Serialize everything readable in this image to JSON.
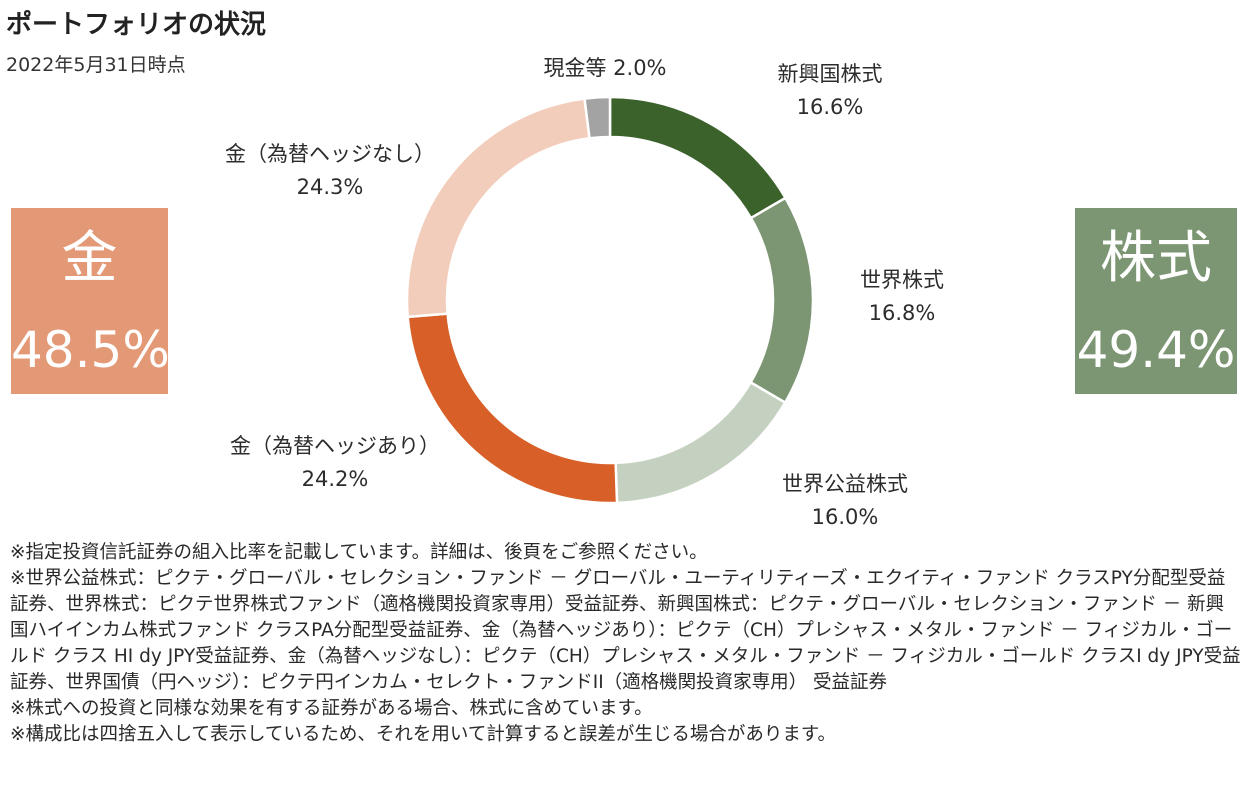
{
  "header": {
    "title": "ポートフォリオの状況",
    "as_of": "2022年5月31日時点"
  },
  "summary": {
    "gold": {
      "label": "金",
      "value": "48.5%",
      "color": "#e39876"
    },
    "stocks": {
      "label": "株式",
      "value": "49.4%",
      "color": "#7c9673"
    }
  },
  "chart_data": {
    "type": "pie",
    "donut": true,
    "title": "",
    "series": [
      {
        "name": "新興国株式",
        "value": 16.6,
        "label": "16.6%",
        "color": "#3b622b"
      },
      {
        "name": "世界株式",
        "value": 16.8,
        "label": "16.8%",
        "color": "#7c9673"
      },
      {
        "name": "世界公益株式",
        "value": 16.0,
        "label": "16.0%",
        "color": "#c5d1c0"
      },
      {
        "name": "金（為替ヘッジあり）",
        "value": 24.2,
        "label": "24.2%",
        "color": "#d85f27"
      },
      {
        "name": "金（為替ヘッジなし）",
        "value": 24.3,
        "label": "24.3%",
        "color": "#f2cdbb"
      },
      {
        "name": "現金等",
        "value": 2.0,
        "label": "2.0%",
        "color": "#a3a3a3"
      }
    ]
  },
  "notes": [
    "※指定投資信託証券の組入比率を記載しています。詳細は、後頁をご参照ください。",
    "※世界公益株式：ピクテ・グローバル・セレクション・ファンド － グローバル・ユーティリティーズ・エクイティ・ファンド クラスPY分配型受益証券、世界株式：ピクテ世界株式ファンド（適格機関投資家専用）受益証券、新興国株式：ピクテ・グローバル・セレクション・ファンド － 新興国ハイインカム株式ファンド クラスPA分配型受益証券、金（為替ヘッジあり）：ピクテ（CH）プレシャス・メタル・ファンド － フィジカル・ゴールド クラス HI dy JPY受益証券、金（為替ヘッジなし）：ピクテ（CH）プレシャス・メタル・ファンド － フィジカル・ゴールド クラスI dy JPY受益証券、世界国債（円ヘッジ）：ピクテ円インカム・セレクト・ファンドII（適格機関投資家専用） 受益証券",
    "※株式への投資と同様な効果を有する証券がある場合、株式に含めています。",
    "※構成比は四捨五入して表示しているため、それを用いて計算すると誤差が生じる場合があります。"
  ]
}
